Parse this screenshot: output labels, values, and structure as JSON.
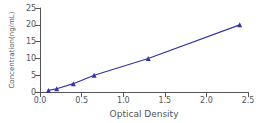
{
  "chart_data": {
    "type": "line",
    "x": [
      0.1,
      0.2,
      0.4,
      0.65,
      1.3,
      2.4
    ],
    "values": [
      0.5,
      1.0,
      2.5,
      5.0,
      10.0,
      20.0
    ],
    "color": "#3333aa",
    "marker": "triangle",
    "xlabel": "Optical Density",
    "ylabel": "Concentration(ng/mL)",
    "xlim": [
      0,
      2.5
    ],
    "ylim": [
      0,
      25
    ],
    "xticks": [
      {
        "value": 0,
        "label": "0.0"
      },
      {
        "value": 0.5,
        "label": "0.5"
      },
      {
        "value": 1,
        "label": "1.0"
      },
      {
        "value": 1.5,
        "label": "1.5"
      },
      {
        "value": 2,
        "label": "2.0"
      },
      {
        "value": 2.5,
        "label": "2.5"
      }
    ],
    "yticks": [
      0,
      5,
      10,
      15,
      20,
      25
    ],
    "grid": false
  }
}
